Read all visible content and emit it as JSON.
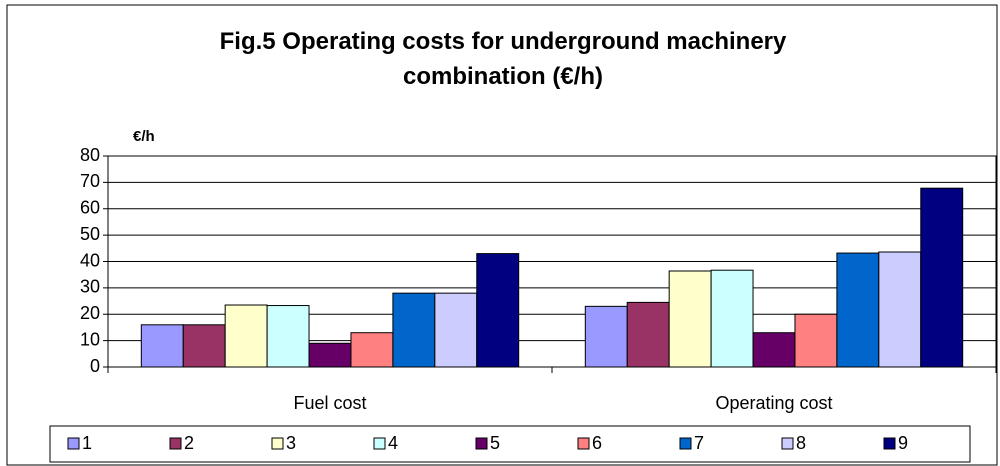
{
  "chart_data": {
    "type": "bar",
    "title": "Fig.5 Operating costs for underground machinery combination (€/h)",
    "y_label": "€/h",
    "categories": [
      "Fuel cost",
      "Operating cost"
    ],
    "series": [
      {
        "name": "1",
        "color": "#9999ff",
        "values": [
          16,
          23
        ]
      },
      {
        "name": "2",
        "color": "#993366",
        "values": [
          16,
          24.5
        ]
      },
      {
        "name": "3",
        "color": "#ffffcc",
        "values": [
          23.5,
          36.4
        ]
      },
      {
        "name": "4",
        "color": "#ccffff",
        "values": [
          23.3,
          36.7
        ]
      },
      {
        "name": "5",
        "color": "#660066",
        "values": [
          9,
          13
        ]
      },
      {
        "name": "6",
        "color": "#ff8080",
        "values": [
          13,
          20
        ]
      },
      {
        "name": "7",
        "color": "#0066cc",
        "values": [
          28,
          43.2
        ]
      },
      {
        "name": "8",
        "color": "#ccccff",
        "values": [
          28,
          43.6
        ]
      },
      {
        "name": "9",
        "color": "#000080",
        "values": [
          43,
          67.8
        ]
      }
    ],
    "ylim": [
      0,
      80
    ],
    "yticks": [
      0,
      10,
      20,
      30,
      40,
      50,
      60,
      70,
      80
    ],
    "grid": true,
    "legend": "bottom"
  }
}
